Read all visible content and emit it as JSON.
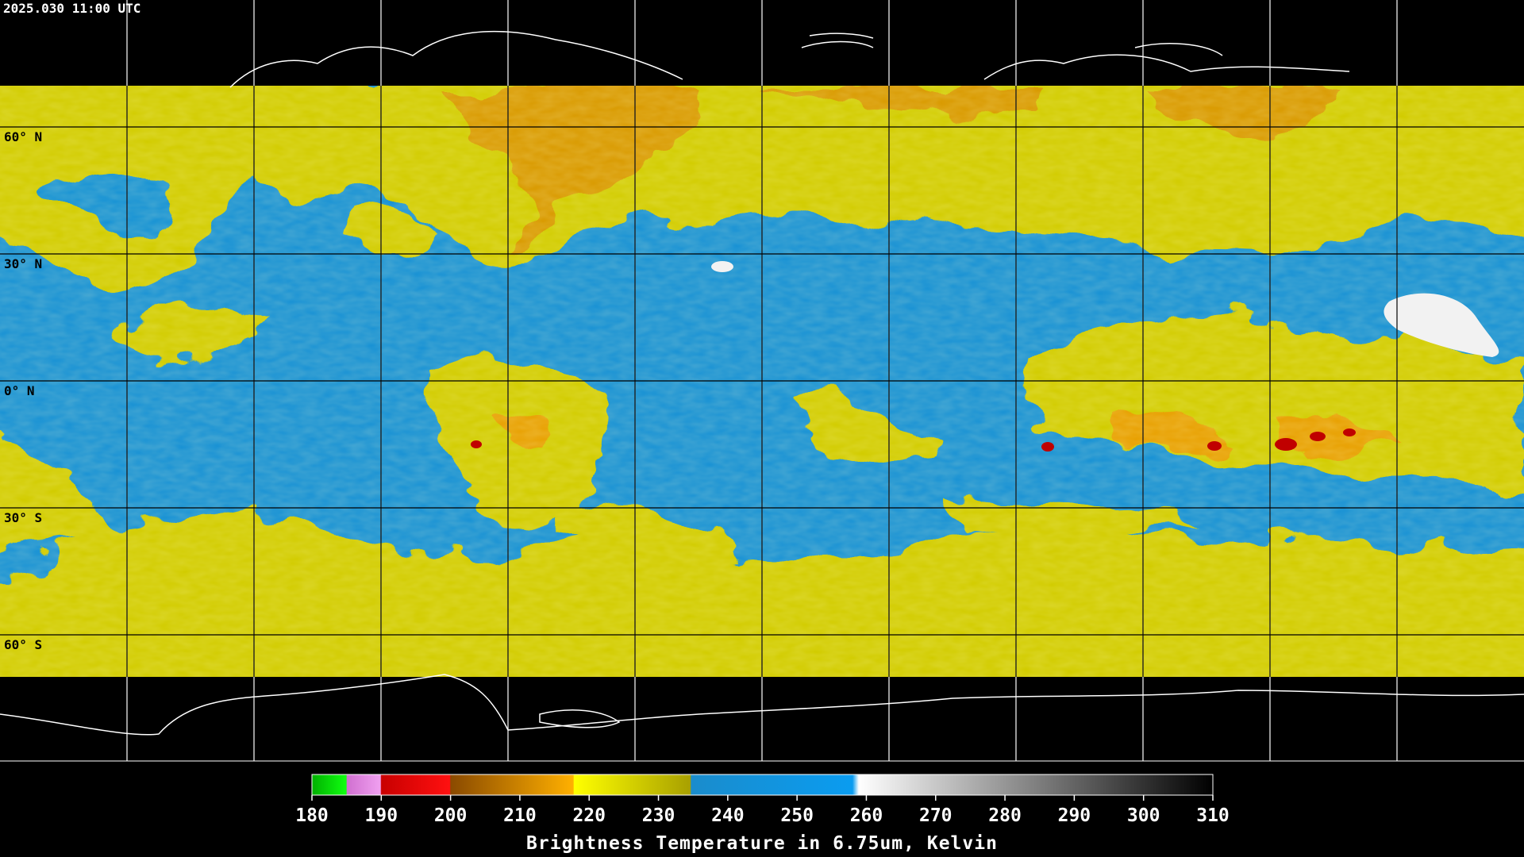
{
  "timestamp": "2025.030 11:00 UTC",
  "latitude_labels": [
    "60° N",
    "30° N",
    "0° N",
    "30° S",
    "60° S"
  ],
  "colorbar": {
    "ticks": [
      180,
      190,
      200,
      210,
      220,
      230,
      240,
      250,
      260,
      270,
      280,
      290,
      300,
      310
    ],
    "label": "Brightness Temperature in 6.75um, Kelvin"
  }
}
